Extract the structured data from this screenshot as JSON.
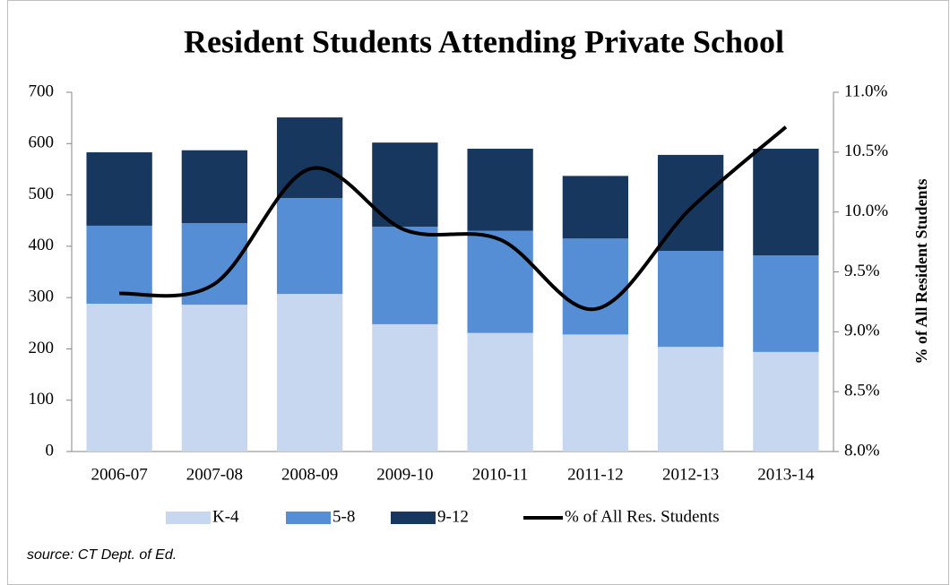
{
  "chart_data": {
    "type": "bar",
    "title": "Resident Students Attending Private School",
    "source": "source: CT Dept. of Ed.",
    "y2label": "% of All Resident Students",
    "stacked": true,
    "categories": [
      "2006-07",
      "2007-08",
      "2008-09",
      "2009-10",
      "2010-11",
      "2011-12",
      "2012-13",
      "2013-14"
    ],
    "series": [
      {
        "name": "K-4",
        "color": "#c6d7ef",
        "values": [
          288,
          286,
          307,
          248,
          231,
          228,
          204,
          194
        ]
      },
      {
        "name": "5-8",
        "color": "#558ed5",
        "values": [
          152,
          159,
          187,
          190,
          199,
          187,
          187,
          188
        ]
      },
      {
        "name": "9-12",
        "color": "#17375e",
        "values": [
          143,
          142,
          157,
          164,
          160,
          122,
          187,
          208
        ]
      },
      {
        "name": "% of All Res. Students",
        "color": "#000000",
        "type": "line",
        "axis": "y2",
        "values": [
          9.32,
          9.4,
          10.36,
          9.85,
          9.77,
          9.19,
          10.03,
          10.71
        ]
      }
    ],
    "ylim": [
      0,
      700
    ],
    "yticks": [
      0,
      100,
      200,
      300,
      400,
      500,
      600,
      700
    ],
    "y2lim": [
      8,
      11
    ],
    "y2ticks": [
      {
        "value": 8,
        "label": "8.0%"
      },
      {
        "value": 8.5,
        "label": "8.5%"
      },
      {
        "value": 9,
        "label": "9.0%"
      },
      {
        "value": 9.5,
        "label": "9.5%"
      },
      {
        "value": 10,
        "label": "10.0%"
      },
      {
        "value": 10.5,
        "label": "10.5%"
      },
      {
        "value": 11,
        "label": "11.0%"
      }
    ],
    "legend": "bottom"
  }
}
